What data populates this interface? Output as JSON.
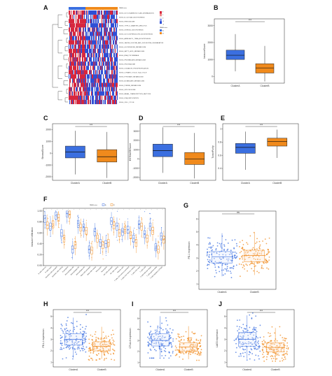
{
  "colors": {
    "cluster_a": "#3b6fe0",
    "cluster_b": "#f08a1c",
    "heat_red": "#d7263d",
    "heat_blue": "#2f4fd6",
    "heat_white": "#f4f4f4",
    "box_a_fill": "#dfe8fb",
    "box_b_fill": "#fbe5d2"
  },
  "chart_data": [
    {
      "panel": "A",
      "type": "heatmap",
      "title": "",
      "annotation_title": "PAMcluster",
      "annotation_legend": [
        "A",
        "B"
      ],
      "color_scale_ticks": [
        "4",
        "2",
        "0",
        "-2",
        "-4"
      ],
      "columns_group": [
        "A",
        "B"
      ],
      "rows": [
        "KEGG_GLYCOSAMINOGLYCAN_DEGRADATION",
        "KEGG_N_GLYCAN_BIOSYNTHESIS",
        "KEGG_PEROXISOME",
        "KEGG_TYPE_II_DIABETES_MELLITUS",
        "KEGG_STEROID_BIOSYNTHESIS",
        "KEGG_GLYCOSPHINGOLIPID_BIOSYNTHESIS",
        "KEGG_AMINOACYL_TRNA_BIOSYNTHESIS",
        "KEGG_VALINE_LEUCINE_AND_ISOLEUCINE_DEGRADATION",
        "KEGG_GLUTATHIONE_METABOLISM",
        "KEGG_FATTY_ACID_METABOLISM",
        "KEGG_RNA_POLYMERASE",
        "KEGG_PROPANOATE_METABOLISM",
        "KEGG_PROTEASOME",
        "KEGG_OXIDATIVE_PHOSPHORYLATION",
        "KEGG_CITRATE_CYCLE_TCA_CYCLE",
        "KEGG_PYRUVATE_METABOLISM",
        "KEGG_BUTANOATE_METABOLISM",
        "KEGG_PURINE_METABOLISM",
        "KEGG_SPLICEOSOME",
        "KEGG_BASAL_TRANSCRIPTION_FACTORS",
        "KEGG_DNA_REPLICATION",
        "KEGG_CELL_CYCLE"
      ]
    },
    {
      "panel": "B",
      "type": "box",
      "ylabel": "ImmuneScore",
      "categories": [
        "ClusterA",
        "ClusterB"
      ],
      "yticks": [
        3000,
        2000,
        1000,
        0
      ],
      "ylim": [
        -400,
        3400
      ],
      "significance": "***",
      "boxes": [
        {
          "name": "ClusterA",
          "min": 300,
          "q1": 1000,
          "median": 1250,
          "q3": 1550,
          "max": 2500
        },
        {
          "name": "ClusterB",
          "min": -300,
          "q1": 200,
          "median": 500,
          "q3": 750,
          "max": 1800
        }
      ]
    },
    {
      "panel": "C",
      "type": "box",
      "ylabel": "StromalScore",
      "categories": [
        "ClusterA",
        "ClusterB"
      ],
      "yticks": [
        2000,
        1000,
        0,
        -1000,
        -2000
      ],
      "ylim": [
        -2300,
        2500
      ],
      "significance": "***",
      "boxes": [
        {
          "name": "ClusterA",
          "min": -1800,
          "q1": -400,
          "median": 100,
          "q3": 600,
          "max": 1900
        },
        {
          "name": "ClusterB",
          "min": -2100,
          "q1": -750,
          "median": -300,
          "q3": 300,
          "max": 1800
        }
      ]
    },
    {
      "panel": "D",
      "type": "box",
      "ylabel": "ESTIMATEScore",
      "categories": [
        "ClusterA",
        "ClusterB"
      ],
      "yticks": [
        3000,
        2000,
        1000,
        0,
        -1000,
        -2000
      ],
      "ylim": [
        -2300,
        3800
      ],
      "significance": "***",
      "boxes": [
        {
          "name": "ClusterA",
          "min": -1500,
          "q1": 250,
          "median": 900,
          "q3": 1600,
          "max": 3400
        },
        {
          "name": "ClusterB",
          "min": -2100,
          "q1": -600,
          "median": 0,
          "q3": 700,
          "max": 2800
        }
      ]
    },
    {
      "panel": "E",
      "type": "box",
      "ylabel": "TumorPurity",
      "categories": [
        "ClusterA",
        "ClusterB"
      ],
      "yticks": [
        1.0,
        0.8,
        0.6,
        0.4
      ],
      "ylim": [
        0.22,
        1.08
      ],
      "significance": "***",
      "boxes": [
        {
          "name": "ClusterA",
          "min": 0.38,
          "q1": 0.63,
          "median": 0.72,
          "q3": 0.78,
          "max": 0.96
        },
        {
          "name": "ClusterB",
          "min": 0.56,
          "q1": 0.74,
          "median": 0.81,
          "q3": 0.86,
          "max": 0.99
        }
      ]
    },
    {
      "panel": "F",
      "type": "box",
      "ylabel": "Immune Infiltration",
      "legend_title": "PAMcluster",
      "legend": [
        "A",
        "B"
      ],
      "yticks": [
        1.0,
        0.8,
        0.6,
        0.4,
        0.2,
        0.0
      ],
      "ylim": [
        0,
        1.05
      ],
      "categories": [
        "B cells memory",
        "B cells naive",
        "Dendritic cells activated",
        "Dendritic cells resting",
        "Eosinophils",
        "Macrophages M0",
        "Macrophages M1",
        "Macrophages M2",
        "Mast cells activated",
        "Mast cells resting",
        "Monocytes",
        "Neutrophils",
        "NK cells activated",
        "NK cells resting",
        "Plasma cells",
        "T cells CD4 memory activated",
        "T cells CD4 memory resting",
        "T cells CD4 naive",
        "T cells CD8",
        "T cells follicular helper",
        "T cells gamma delta",
        "T cells regulatory (Tregs)"
      ],
      "series": [
        {
          "name": "A",
          "medians": [
            0.86,
            0.72,
            0.92,
            0.6,
            0.96,
            0.3,
            0.77,
            0.7,
            0.3,
            0.62,
            0.42,
            0.4,
            0.82,
            0.72,
            0.62,
            0.66,
            0.5,
            0.76,
            0.58,
            0.72,
            0.34,
            0.54
          ]
        },
        {
          "name": "B",
          "medians": [
            0.74,
            0.76,
            0.88,
            0.5,
            0.94,
            0.38,
            0.7,
            0.64,
            0.28,
            0.5,
            0.38,
            0.42,
            0.74,
            0.6,
            0.66,
            0.56,
            0.42,
            0.72,
            0.5,
            0.64,
            0.3,
            0.48
          ]
        }
      ]
    },
    {
      "panel": "G",
      "type": "box",
      "ylabel": "PD-1 expression",
      "categories": [
        "ClusterA",
        "ClusterB"
      ],
      "yticks": [
        6,
        5,
        4,
        3,
        2,
        1
      ],
      "ylim": [
        0.6,
        6.6
      ],
      "significance": "ns",
      "boxes": [
        {
          "name": "ClusterA",
          "min": 1.6,
          "q1": 2.6,
          "median": 3.1,
          "q3": 3.5,
          "max": 4.9
        },
        {
          "name": "ClusterB",
          "min": 1.7,
          "q1": 2.7,
          "median": 3.2,
          "q3": 3.6,
          "max": 5.0
        }
      ]
    },
    {
      "panel": "H",
      "type": "box",
      "ylabel": "PD-L1 expression",
      "categories": [
        "ClusterA",
        "ClusterB"
      ],
      "yticks": [
        5,
        4,
        3,
        2,
        1
      ],
      "ylim": [
        0.6,
        5.6
      ],
      "significance": "***",
      "boxes": [
        {
          "name": "ClusterA",
          "min": 1.4,
          "q1": 2.5,
          "median": 3.0,
          "q3": 3.5,
          "max": 4.9
        },
        {
          "name": "ClusterB",
          "min": 1.3,
          "q1": 2.0,
          "median": 2.4,
          "q3": 2.8,
          "max": 4.1
        }
      ]
    },
    {
      "panel": "I",
      "type": "box",
      "ylabel": "CTLA-4 expression",
      "categories": [
        "ClusterA",
        "ClusterB"
      ],
      "yticks": [
        5,
        4,
        3,
        2,
        1
      ],
      "ylim": [
        0.6,
        5.8
      ],
      "significance": "***",
      "boxes": [
        {
          "name": "ClusterA",
          "min": 1.5,
          "q1": 2.5,
          "median": 3.0,
          "q3": 3.6,
          "max": 5.2
        },
        {
          "name": "ClusterB",
          "min": 1.3,
          "q1": 2.0,
          "median": 2.4,
          "q3": 2.8,
          "max": 4.3
        }
      ]
    },
    {
      "panel": "J",
      "type": "box",
      "ylabel": "LAG3 expression",
      "categories": [
        "ClusterA",
        "ClusterB"
      ],
      "yticks": [
        5,
        4,
        3,
        2,
        1
      ],
      "ylim": [
        0.6,
        5.6
      ],
      "significance": "***",
      "boxes": [
        {
          "name": "ClusterA",
          "min": 1.3,
          "q1": 2.4,
          "median": 3.0,
          "q3": 3.6,
          "max": 5.1
        },
        {
          "name": "ClusterB",
          "min": 1.2,
          "q1": 1.9,
          "median": 2.3,
          "q3": 2.7,
          "max": 4.0
        }
      ]
    }
  ]
}
